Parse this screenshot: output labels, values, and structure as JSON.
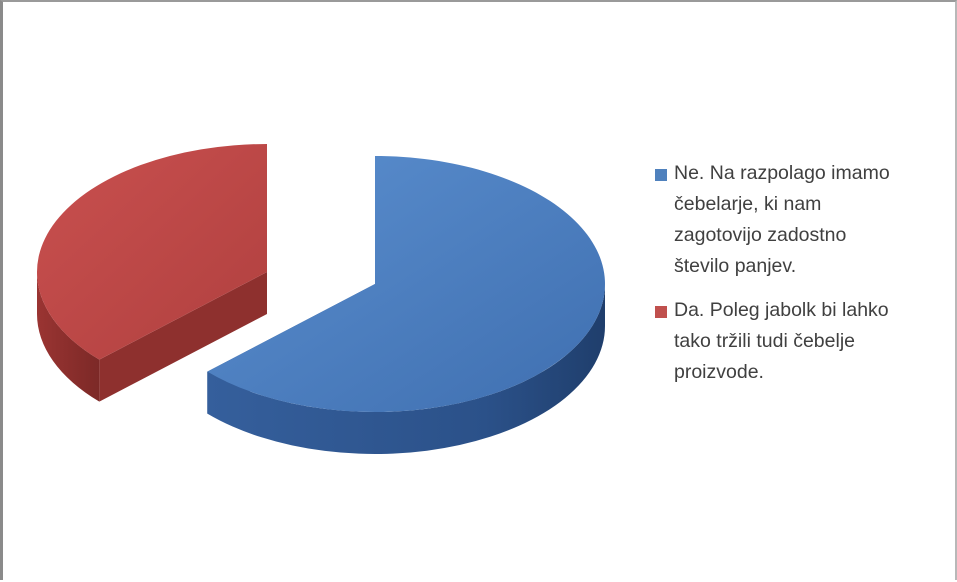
{
  "chart_data": {
    "type": "pie",
    "style": "3d-exploded",
    "categories": [
      "Ne. Na razpolago imamo čebelarje, ki nam zagotovijo zadostno število panjev.",
      "Da. Poleg jabolk bi lahko tako tržili tudi čebelje proizvode."
    ],
    "values": [
      63,
      37
    ],
    "colors": [
      "#4f81bd",
      "#c0504d"
    ],
    "legend_position": "right",
    "title": ""
  },
  "legend": {
    "items": [
      {
        "lines": [
          "Ne. Na razpolago imamo",
          "čebelarje, ki nam",
          "zagotovijo zadostno",
          "število panjev."
        ],
        "color": "#4f81bd"
      },
      {
        "lines": [
          "Da. Poleg jabolk bi lahko",
          "tako tržili tudi čebelje",
          "proizvode."
        ],
        "color": "#c0504d"
      }
    ]
  }
}
